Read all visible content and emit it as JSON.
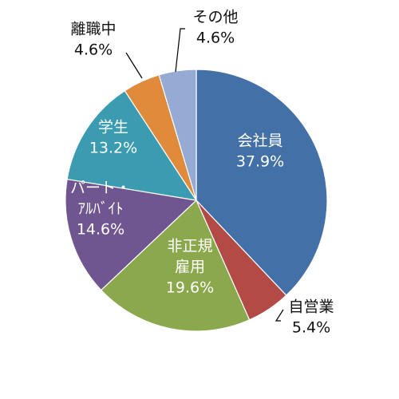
{
  "chart_data": {
    "type": "pie",
    "title": "",
    "start_angle_deg": 0,
    "direction": "clockwise",
    "slices": [
      {
        "key": "kaishain",
        "label_lines": [
          "会社員"
        ],
        "value_label": "37.9%",
        "value": 37.9,
        "color": "#4470A8",
        "label_position": "inside"
      },
      {
        "key": "jieigyo",
        "label_lines": [
          "自営業"
        ],
        "value_label": "5.4%",
        "value": 5.4,
        "color": "#B34A46",
        "label_position": "outside"
      },
      {
        "key": "hiseiki",
        "label_lines": [
          "非正規",
          "雇用"
        ],
        "value_label": "19.6%",
        "value": 19.6,
        "color": "#8BA84C",
        "label_position": "inside"
      },
      {
        "key": "part",
        "label_lines": [
          "パート・",
          "ｱﾙﾊﾞｲﾄ"
        ],
        "value_label": "14.6%",
        "value": 14.6,
        "color": "#705691",
        "label_position": "inside"
      },
      {
        "key": "gakusei",
        "label_lines": [
          "学生"
        ],
        "value_label": "13.2%",
        "value": 13.2,
        "color": "#3A9BB1",
        "label_position": "inside"
      },
      {
        "key": "rishoku",
        "label_lines": [
          "離職中"
        ],
        "value_label": "4.6%",
        "value": 4.6,
        "color": "#E08A3C",
        "label_position": "outside"
      },
      {
        "key": "sonota",
        "label_lines": [
          "その他"
        ],
        "value_label": "4.6%",
        "value": 4.6,
        "color": "#96ABD3",
        "label_position": "outside"
      }
    ]
  }
}
